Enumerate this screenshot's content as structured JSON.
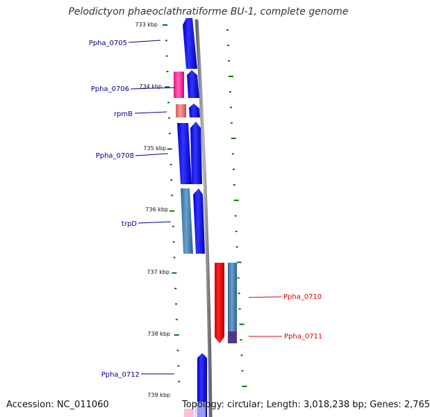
{
  "title": "Pelodictyon phaeoclathratiforme BU-1, complete genome",
  "footer": {
    "accession": "Accession: NC_011060",
    "summary": "Topology: circular; Length: 3,018,238 bp; Genes: 2,765"
  },
  "kbp_ticks": [
    "733 kbp",
    "734 kbp",
    "735 kbp",
    "736 kbp",
    "737 kbp",
    "738 kbp",
    "739 kbp"
  ],
  "genes": {
    "left": [
      "Ppha_0705",
      "Ppha_0706",
      "rpmB",
      "Ppha_0708",
      "trpD",
      "Ppha_0712"
    ],
    "right": [
      "Ppha_0710",
      "Ppha_0711"
    ]
  },
  "colors": {
    "forward_gene": "#0000ee",
    "reverse_gene": "#ff0000",
    "label_left": "#00008b",
    "label_right": "#dd0000",
    "backbone": "#888888",
    "tick": "#007700"
  }
}
